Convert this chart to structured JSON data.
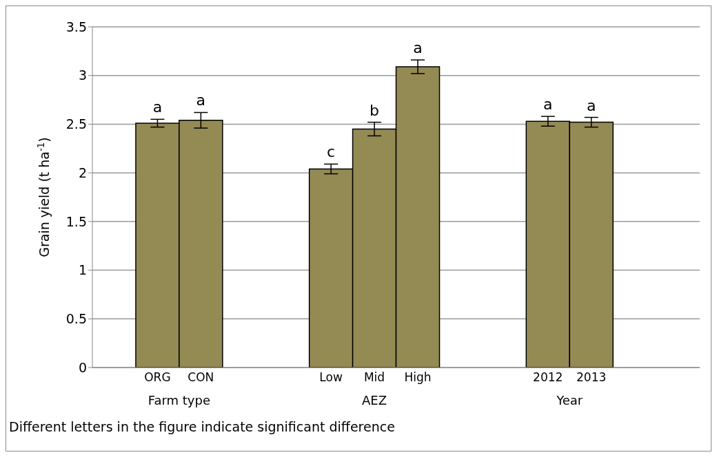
{
  "chart_data": {
    "type": "bar",
    "ylabel": "Grain yield (t ha$^{-1}$)",
    "categories": [
      null,
      "ORG",
      "CON",
      null,
      null,
      "Low",
      "Mid",
      "High",
      null,
      null,
      "2012",
      "2013",
      null,
      null
    ],
    "values": [
      null,
      2.51,
      2.54,
      null,
      null,
      2.04,
      2.45,
      3.09,
      null,
      null,
      2.53,
      2.52,
      null,
      null
    ],
    "errors": [
      null,
      0.04,
      0.08,
      null,
      null,
      0.05,
      0.07,
      0.07,
      null,
      null,
      0.05,
      0.05,
      null,
      null
    ],
    "color": "#948a54",
    "ylim": [
      0,
      3.5
    ],
    "yticks": [
      0,
      0.5,
      1,
      1.5,
      2,
      2.5,
      3,
      3.5
    ],
    "grid": "y",
    "legend": false,
    "annotations": [
      {
        "text": "a",
        "x": "ORG",
        "y": 2.51
      },
      {
        "text": "a",
        "x": "CON",
        "y": 2.54
      },
      {
        "text": "c",
        "x": "Low",
        "y": 2.04
      },
      {
        "text": "b",
        "x": "Mid",
        "y": 2.45
      },
      {
        "text": "a",
        "x": "High",
        "y": 3.09
      },
      {
        "text": "a",
        "x": "2012",
        "y": 2.53
      },
      {
        "text": "a",
        "x": "2013",
        "y": 2.52
      },
      "Farm type",
      "AEZ",
      "Year",
      "Different letters in the figure indicate significant difference"
    ]
  }
}
